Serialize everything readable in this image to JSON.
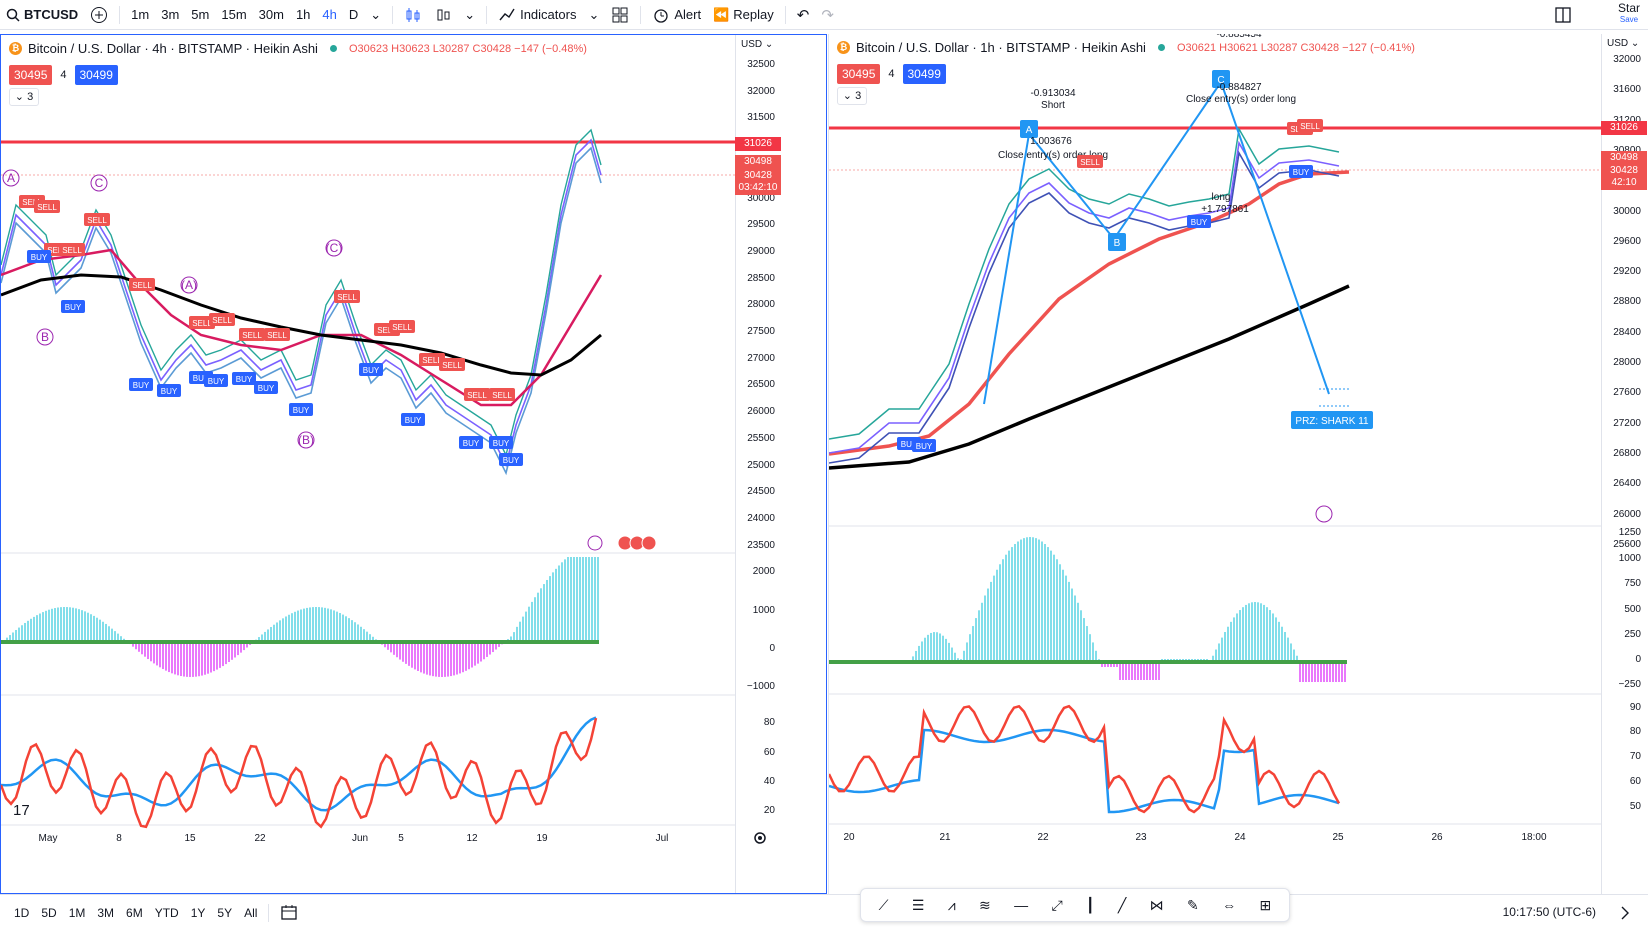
{
  "toolbar": {
    "symbol": "BTCUSD",
    "intervals": [
      "1m",
      "3m",
      "5m",
      "15m",
      "30m",
      "1h",
      "4h",
      "D"
    ],
    "active_interval": "4h",
    "indicators_label": "Indicators",
    "alert_label": "Alert",
    "replay_label": "Replay",
    "star_label": "Star",
    "save_label": "Save"
  },
  "left_chart": {
    "title": "Bitcoin / U.S. Dollar · 4h · BITSTAMP · Heikin Ashi",
    "ohlc": {
      "o": "O30623",
      "h": "H30623",
      "l": "L30287",
      "c": "C30428",
      "chg": "−147 (−0.48%)"
    },
    "bid": "30495",
    "spread": "4",
    "ask": "30499",
    "collapse": "3",
    "currency": "USD",
    "price_ticks": [
      "32500",
      "32000",
      "31500",
      "31000",
      "30500",
      "30000",
      "29500",
      "29000",
      "28500",
      "28000",
      "27500",
      "27000",
      "26500",
      "26000",
      "25500",
      "25000",
      "24500",
      "24000",
      "23500"
    ],
    "osc_ticks": [
      "2000",
      "1000",
      "0",
      "−1000"
    ],
    "rsi_ticks": [
      "80",
      "60",
      "40",
      "20"
    ],
    "price_labels": [
      "31026",
      "30498",
      "30428",
      "03:42:10"
    ],
    "time_labels": [
      "May",
      "8",
      "15",
      "22",
      "Jun",
      "5",
      "12",
      "19",
      "Jul"
    ],
    "wave_labels": [
      "A",
      "B",
      "C",
      "(A)",
      "(B)",
      "(C)"
    ]
  },
  "right_chart": {
    "title": "Bitcoin / U.S. Dollar · 1h · BITSTAMP · Heikin Ashi",
    "ohlc": {
      "o": "O30621",
      "h": "H30621",
      "l": "L30287",
      "c": "C30428",
      "chg": "−127 (−0.41%)"
    },
    "bid": "30495",
    "spread": "4",
    "ask": "30499",
    "collapse": "3",
    "currency": "USD",
    "price_ticks": [
      "32000",
      "31600",
      "31200",
      "30800",
      "30400",
      "30000",
      "29600",
      "29200",
      "28800",
      "28400",
      "28000",
      "27600",
      "27200",
      "26800",
      "26400",
      "26000",
      "25600"
    ],
    "osc_ticks": [
      "1250",
      "1000",
      "750",
      "500",
      "250",
      "0",
      "−250"
    ],
    "rsi_ticks": [
      "90",
      "80",
      "70",
      "60",
      "50"
    ],
    "price_labels": [
      "31026",
      "30498",
      "30428",
      "42:10"
    ],
    "time_labels": [
      "20",
      "21",
      "22",
      "23",
      "24",
      "25",
      "26",
      "18:00"
    ],
    "annotations": [
      "-0.913034",
      "Short",
      "1.003676",
      "Close entry(s) order long",
      "-0.884827",
      "Close entry(s) order long",
      "long",
      "+1.797861",
      "PRZ: SHARK 11",
      "-0.885454"
    ],
    "pattern_points": [
      "A",
      "B",
      "C"
    ]
  },
  "bottom": {
    "ranges": [
      "1D",
      "5D",
      "1M",
      "3M",
      "6M",
      "YTD",
      "1Y",
      "5Y",
      "All"
    ],
    "clock": "10:17:50 (UTC-6)"
  },
  "colors": {
    "accent": "#2962ff",
    "red": "#ef5350",
    "green": "#26a69a",
    "magenta": "#e040fb"
  }
}
